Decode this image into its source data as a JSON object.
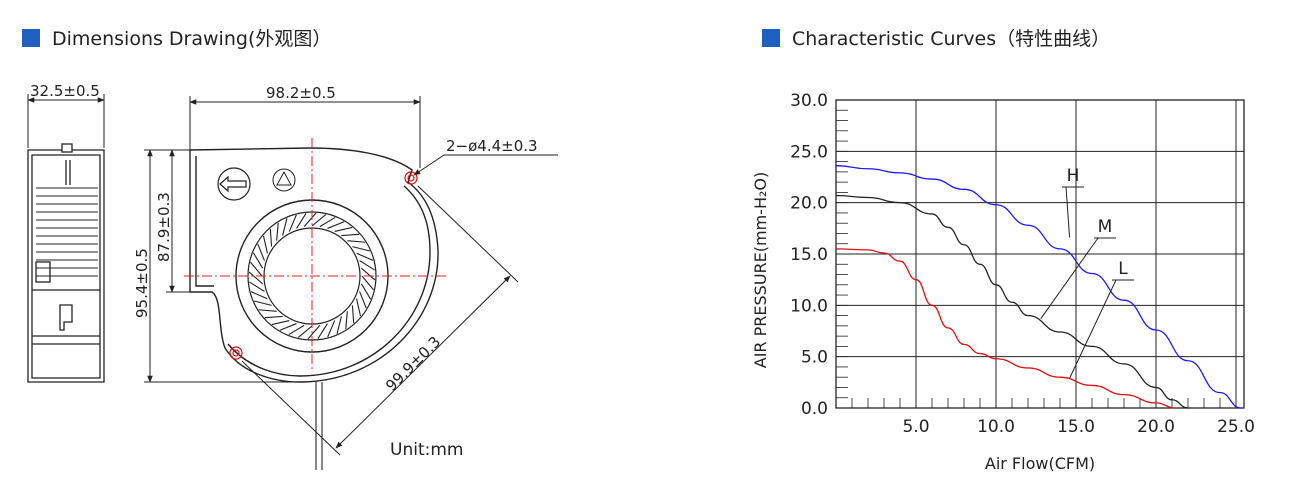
{
  "left_section": {
    "title": "Dimensions Drawing(外观图）",
    "dimensions": {
      "thickness": "32.5±0.5",
      "width": "98.2±0.5",
      "height": "95.4±0.5",
      "height_inner": "87.9±0.3",
      "holes": "2−ø4.4±0.3",
      "hole_distance": "99.9±0.3"
    },
    "unit": "Unit:mm"
  },
  "right_section": {
    "title": "Characteristic Curves（特性曲线）"
  },
  "chart_data": {
    "type": "line",
    "title": "",
    "xlabel": "Air Flow(CFM)",
    "ylabel": "AIR PRESSURE(mm-H₂O)",
    "xlim": [
      0,
      25.5
    ],
    "ylim": [
      0,
      30
    ],
    "xticks": [
      "5.0",
      "10.0",
      "15.0",
      "20.0",
      "25.0"
    ],
    "yticks": [
      "0.0",
      "5.0",
      "10.0",
      "15.0",
      "20.0",
      "25.0",
      "30.0"
    ],
    "grid": true,
    "series": [
      {
        "name": "H",
        "color": "#1a1aff",
        "x": [
          0,
          2,
          4,
          6,
          8,
          10,
          12,
          14,
          16,
          18,
          20,
          22,
          24,
          25.3
        ],
        "y": [
          23.6,
          23.3,
          22.9,
          22.3,
          21.3,
          19.8,
          17.8,
          15.5,
          13.1,
          10.5,
          7.6,
          4.6,
          1.5,
          0
        ]
      },
      {
        "name": "M",
        "color": "#222222",
        "x": [
          0,
          2,
          4,
          6,
          7,
          8,
          9,
          10,
          11,
          12,
          14,
          16,
          18,
          20,
          21,
          22
        ],
        "y": [
          20.7,
          20.5,
          20.0,
          18.9,
          17.6,
          15.9,
          14.0,
          12.0,
          10.3,
          9.0,
          7.4,
          6.0,
          4.3,
          2.0,
          0.8,
          0
        ]
      },
      {
        "name": "L",
        "color": "#e01010",
        "x": [
          0,
          2,
          3,
          4,
          5,
          6,
          7,
          8,
          9,
          10,
          12,
          14,
          16,
          18,
          20,
          21.2
        ],
        "y": [
          15.5,
          15.4,
          15.1,
          14.3,
          12.5,
          10.0,
          7.8,
          6.2,
          5.3,
          4.8,
          3.9,
          3.0,
          2.2,
          1.3,
          0.5,
          0
        ]
      }
    ],
    "labels": [
      "H",
      "M",
      "L"
    ]
  }
}
